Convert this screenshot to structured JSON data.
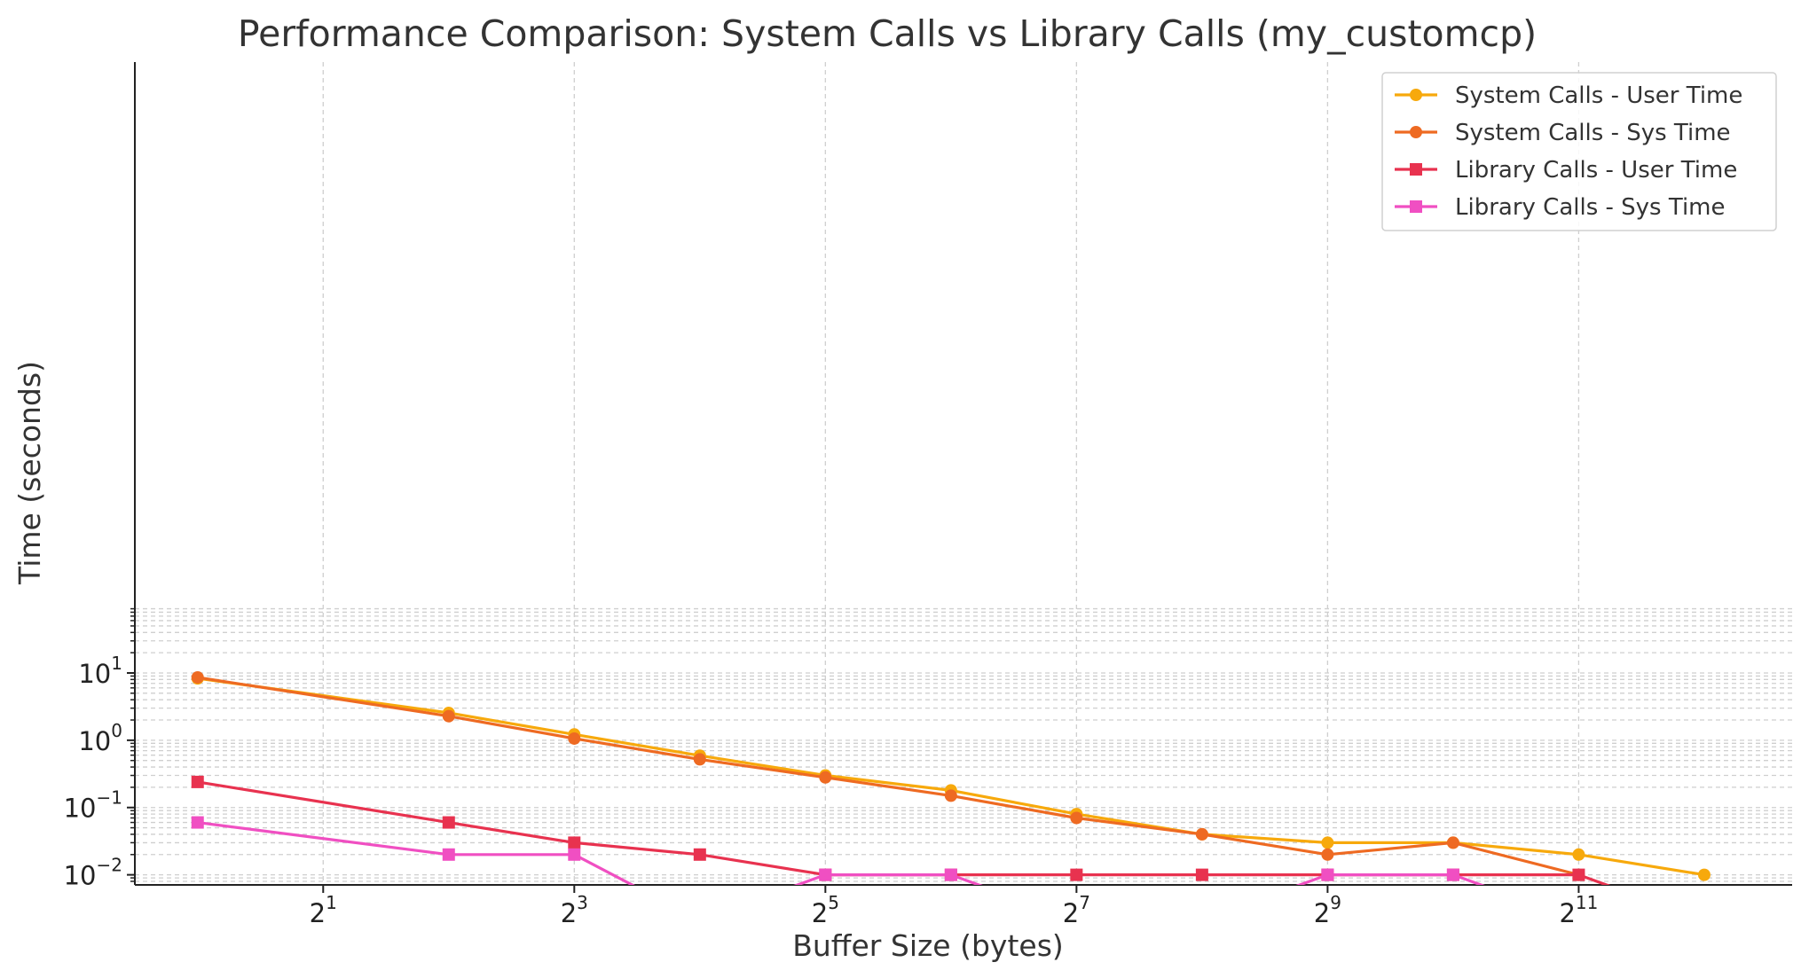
{
  "chart_data": {
    "type": "line",
    "title": "Performance Comparison: System Calls vs Library Calls (my_customcp)",
    "xlabel": "Buffer Size (bytes)",
    "ylabel": "Time (seconds)",
    "xscale": "log2",
    "yscale": "log10",
    "xlim_log2": [
      -0.5,
      12.7
    ],
    "ylim_log10": [
      -2.15,
      10.08
    ],
    "x": [
      1,
      4,
      8,
      16,
      32,
      64,
      128,
      256,
      512,
      1024,
      2048,
      4096
    ],
    "x_ticks": [
      {
        "base": "2",
        "exp": "1",
        "value": 2
      },
      {
        "base": "2",
        "exp": "3",
        "value": 8
      },
      {
        "base": "2",
        "exp": "5",
        "value": 32
      },
      {
        "base": "2",
        "exp": "7",
        "value": 128
      },
      {
        "base": "2",
        "exp": "9",
        "value": 512
      },
      {
        "base": "2",
        "exp": "11",
        "value": 2048
      }
    ],
    "y_ticks": [
      {
        "base": "10",
        "exp": "1",
        "value": 10
      },
      {
        "base": "10",
        "exp": "0",
        "value": 1
      },
      {
        "base": "10",
        "exp": "−1",
        "value": 0.1
      },
      {
        "base": "10",
        "exp": "−2",
        "value": 0.01
      }
    ],
    "grid": true,
    "legend_position": "top-right",
    "series": [
      {
        "name": "System Calls - User Time",
        "color": "#F7A90C",
        "marker": "circle",
        "values": [
          8.3,
          2.55,
          1.22,
          0.59,
          0.3,
          0.18,
          0.08,
          0.04,
          0.03,
          0.03,
          0.02,
          0.01
        ]
      },
      {
        "name": "System Calls - Sys Time",
        "color": "#EE6A22",
        "marker": "circle",
        "values": [
          8.6,
          2.28,
          1.06,
          0.52,
          0.28,
          0.15,
          0.07,
          0.04,
          0.02,
          0.03,
          0.01,
          null
        ]
      },
      {
        "name": "Library Calls - User Time",
        "color": "#E8324F",
        "marker": "square",
        "values": [
          0.24,
          0.06,
          0.03,
          0.02,
          0.01,
          0.01,
          0.01,
          0.01,
          0.01,
          0.01,
          0.01,
          0
        ]
      },
      {
        "name": "Library Calls - Sys Time",
        "color": "#F04FC2",
        "marker": "square",
        "values": [
          0.06,
          0.02,
          0.02,
          0,
          0.01,
          0.01,
          0,
          0,
          0.01,
          0.01,
          0,
          null
        ]
      }
    ]
  }
}
